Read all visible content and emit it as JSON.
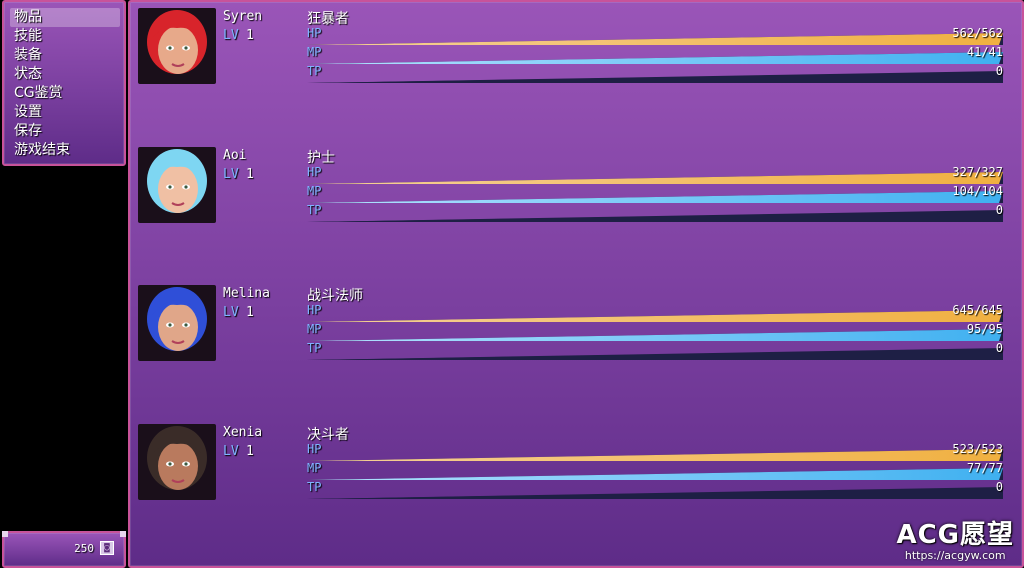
{
  "menu": {
    "items": [
      {
        "label": "物品",
        "selected": true
      },
      {
        "label": "技能",
        "selected": false
      },
      {
        "label": "装备",
        "selected": false
      },
      {
        "label": "状态",
        "selected": false
      },
      {
        "label": "CG鉴赏",
        "selected": false
      },
      {
        "label": "设置",
        "selected": false
      },
      {
        "label": "保存",
        "selected": false
      },
      {
        "label": "游戏结束",
        "selected": false
      }
    ]
  },
  "gold": {
    "value": "250",
    "icon": "gold-coin-icon"
  },
  "actors": [
    {
      "name": "Syren",
      "lv_label": "LV",
      "level": "1",
      "class": "狂暴者",
      "hair": "#d8242b",
      "skin": "#e7a98a",
      "hp": {
        "label": "HP",
        "text": "562/562",
        "ratio": 1.0
      },
      "mp": {
        "label": "MP",
        "text": "41/41",
        "ratio": 1.0
      },
      "tp": {
        "label": "TP",
        "text": "0",
        "ratio": 0.0
      }
    },
    {
      "name": "Aoi",
      "lv_label": "LV",
      "level": "1",
      "class": "护士",
      "hair": "#7ed6f2",
      "skin": "#f0c0a4",
      "hp": {
        "label": "HP",
        "text": "327/327",
        "ratio": 1.0
      },
      "mp": {
        "label": "MP",
        "text": "104/104",
        "ratio": 1.0
      },
      "tp": {
        "label": "TP",
        "text": "0",
        "ratio": 0.0
      }
    },
    {
      "name": "Melina",
      "lv_label": "LV",
      "level": "1",
      "class": "战斗法师",
      "hair": "#2f4fd8",
      "skin": "#e0a689",
      "hp": {
        "label": "HP",
        "text": "645/645",
        "ratio": 1.0
      },
      "mp": {
        "label": "MP",
        "text": "95/95",
        "ratio": 1.0
      },
      "tp": {
        "label": "TP",
        "text": "0",
        "ratio": 0.0
      }
    },
    {
      "name": "Xenia",
      "lv_label": "LV",
      "level": "1",
      "class": "决斗者",
      "hair": "#3a2c28",
      "skin": "#b97a5e",
      "hp": {
        "label": "HP",
        "text": "523/523",
        "ratio": 1.0
      },
      "mp": {
        "label": "MP",
        "text": "77/77",
        "ratio": 1.0
      },
      "tp": {
        "label": "TP",
        "text": "0",
        "ratio": 0.0
      }
    }
  ],
  "colors": {
    "hp_from": "#f6d19a",
    "hp_to": "#f0b040",
    "mp_from": "#b6e3ff",
    "mp_to": "#3fb0f0",
    "track": "#1e1f45",
    "label": "#7fb3ff"
  },
  "watermark": {
    "title": "ACG愿望",
    "url": "https://acgyw.com"
  }
}
